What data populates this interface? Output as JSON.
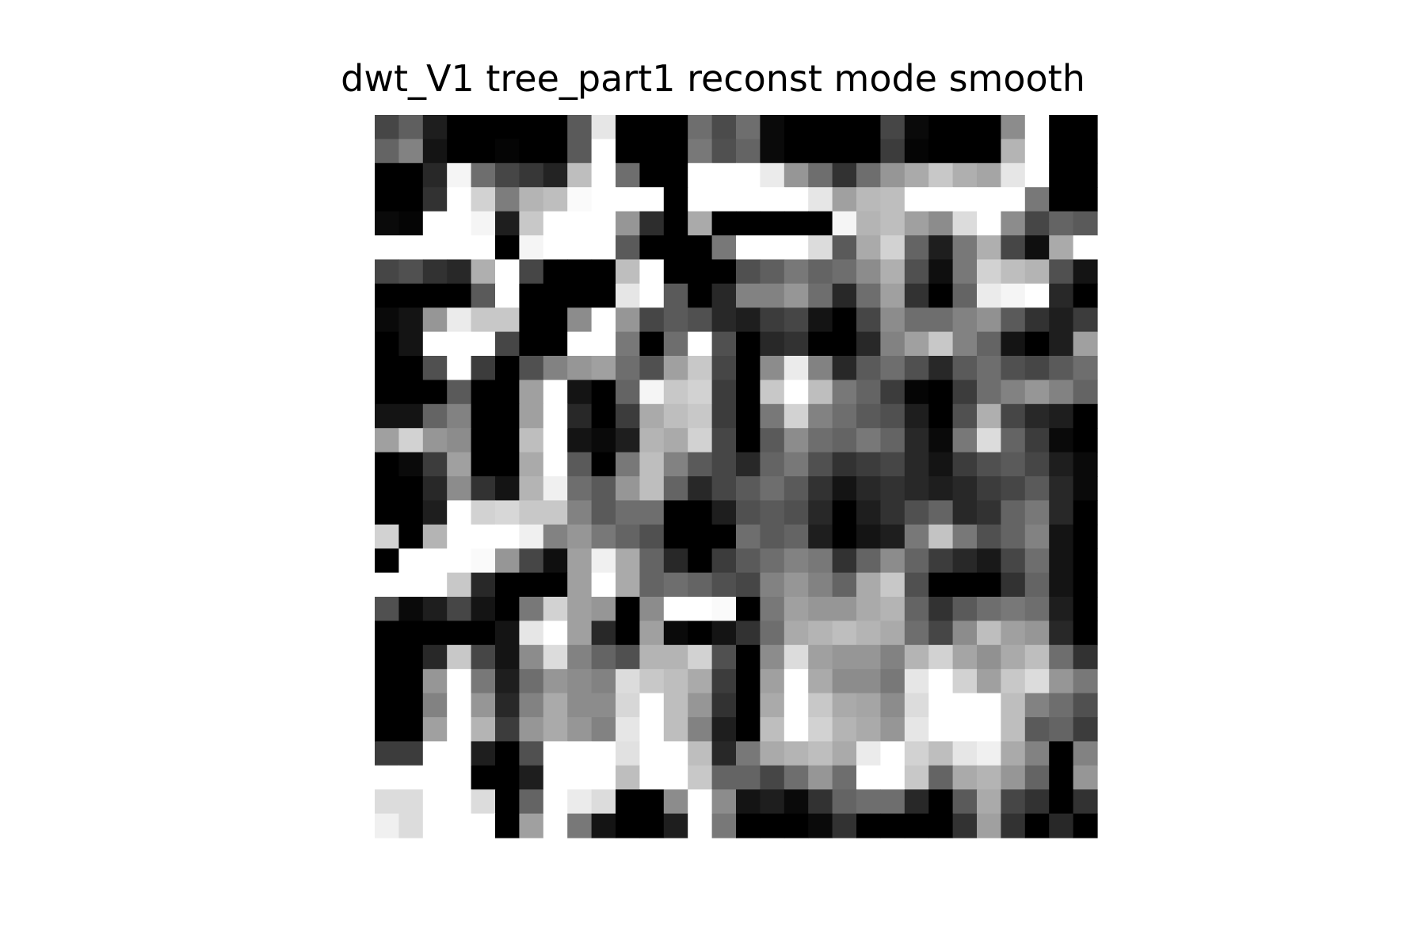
{
  "chart_data": {
    "type": "heatmap",
    "title": "dwt_V1 tree_part1 reconst mode smooth",
    "colormap": "gray",
    "vmin": 0,
    "vmax": 255,
    "rows": 30,
    "cols": 30,
    "axes_visible": false,
    "values": [
      [
        70,
        95,
        30,
        0,
        0,
        0,
        0,
        0,
        90,
        230,
        0,
        0,
        0,
        110,
        75,
        110,
        10,
        0,
        0,
        0,
        0,
        70,
        10,
        0,
        0,
        0,
        140,
        255,
        0,
        0
      ],
      [
        100,
        130,
        20,
        0,
        0,
        5,
        0,
        0,
        90,
        255,
        0,
        0,
        0,
        120,
        80,
        100,
        10,
        0,
        0,
        0,
        0,
        60,
        5,
        0,
        0,
        0,
        180,
        255,
        0,
        0
      ],
      [
        0,
        0,
        40,
        245,
        110,
        70,
        55,
        35,
        190,
        255,
        110,
        0,
        0,
        255,
        255,
        255,
        235,
        150,
        110,
        50,
        110,
        150,
        170,
        200,
        175,
        165,
        230,
        255,
        0,
        0
      ],
      [
        0,
        0,
        50,
        255,
        210,
        125,
        180,
        190,
        250,
        255,
        255,
        255,
        0,
        255,
        255,
        255,
        255,
        255,
        230,
        160,
        185,
        190,
        255,
        255,
        255,
        255,
        255,
        120,
        0,
        0
      ],
      [
        10,
        5,
        255,
        255,
        245,
        30,
        200,
        255,
        255,
        255,
        150,
        45,
        0,
        170,
        0,
        0,
        0,
        0,
        0,
        245,
        180,
        190,
        160,
        140,
        220,
        255,
        140,
        70,
        100,
        90
      ],
      [
        255,
        255,
        255,
        255,
        255,
        0,
        245,
        255,
        255,
        255,
        90,
        0,
        0,
        0,
        120,
        255,
        255,
        255,
        220,
        90,
        170,
        210,
        100,
        30,
        120,
        175,
        70,
        15,
        170,
        255
      ],
      [
        70,
        80,
        50,
        40,
        175,
        255,
        70,
        0,
        0,
        0,
        190,
        255,
        0,
        0,
        0,
        80,
        95,
        120,
        100,
        110,
        140,
        175,
        80,
        15,
        120,
        210,
        190,
        180,
        80,
        20
      ],
      [
        0,
        0,
        0,
        0,
        90,
        255,
        0,
        0,
        0,
        0,
        230,
        255,
        90,
        0,
        40,
        130,
        130,
        150,
        110,
        40,
        110,
        160,
        50,
        0,
        100,
        235,
        245,
        255,
        40,
        0
      ],
      [
        10,
        20,
        150,
        235,
        200,
        200,
        0,
        0,
        140,
        255,
        150,
        70,
        90,
        80,
        40,
        30,
        60,
        70,
        20,
        0,
        70,
        140,
        110,
        110,
        130,
        145,
        90,
        50,
        30,
        60
      ],
      [
        0,
        20,
        255,
        255,
        255,
        70,
        0,
        0,
        255,
        255,
        120,
        0,
        110,
        255,
        80,
        0,
        40,
        50,
        0,
        0,
        40,
        130,
        160,
        200,
        130,
        100,
        20,
        0,
        30,
        160
      ],
      [
        0,
        0,
        80,
        255,
        60,
        0,
        80,
        130,
        150,
        160,
        110,
        80,
        160,
        200,
        70,
        0,
        140,
        235,
        130,
        40,
        90,
        110,
        80,
        40,
        90,
        110,
        80,
        70,
        90,
        110
      ],
      [
        0,
        0,
        0,
        90,
        0,
        0,
        160,
        255,
        20,
        0,
        100,
        245,
        200,
        210,
        60,
        0,
        200,
        255,
        190,
        120,
        100,
        60,
        5,
        0,
        60,
        110,
        130,
        150,
        130,
        100
      ],
      [
        20,
        20,
        100,
        130,
        0,
        0,
        160,
        255,
        40,
        0,
        60,
        170,
        190,
        200,
        60,
        0,
        120,
        210,
        130,
        110,
        90,
        80,
        30,
        0,
        80,
        175,
        70,
        40,
        30,
        0
      ],
      [
        160,
        210,
        150,
        140,
        0,
        0,
        190,
        255,
        20,
        10,
        30,
        180,
        170,
        210,
        70,
        0,
        90,
        140,
        110,
        100,
        120,
        100,
        40,
        10,
        120,
        220,
        100,
        60,
        10,
        0
      ],
      [
        0,
        10,
        60,
        160,
        0,
        0,
        170,
        255,
        90,
        0,
        120,
        190,
        130,
        90,
        70,
        40,
        100,
        120,
        80,
        50,
        60,
        70,
        40,
        20,
        60,
        80,
        90,
        70,
        30,
        10
      ],
      [
        0,
        0,
        40,
        140,
        50,
        20,
        180,
        240,
        110,
        90,
        150,
        190,
        100,
        40,
        70,
        90,
        110,
        90,
        50,
        20,
        40,
        50,
        40,
        30,
        40,
        60,
        70,
        90,
        40,
        10
      ],
      [
        0,
        0,
        30,
        255,
        210,
        215,
        200,
        200,
        130,
        90,
        110,
        110,
        0,
        0,
        30,
        80,
        90,
        80,
        40,
        0,
        30,
        50,
        80,
        100,
        40,
        50,
        100,
        120,
        40,
        0
      ],
      [
        210,
        0,
        180,
        255,
        255,
        255,
        240,
        130,
        150,
        120,
        100,
        80,
        0,
        0,
        0,
        110,
        90,
        100,
        30,
        0,
        20,
        30,
        120,
        195,
        120,
        80,
        100,
        130,
        20,
        0
      ],
      [
        0,
        255,
        255,
        255,
        250,
        150,
        70,
        15,
        160,
        240,
        170,
        100,
        40,
        0,
        60,
        90,
        110,
        130,
        120,
        50,
        100,
        140,
        100,
        60,
        40,
        25,
        70,
        110,
        20,
        0
      ],
      [
        255,
        255,
        255,
        200,
        40,
        0,
        0,
        0,
        160,
        255,
        170,
        100,
        110,
        100,
        80,
        70,
        130,
        150,
        130,
        100,
        170,
        200,
        80,
        0,
        0,
        0,
        50,
        100,
        20,
        0
      ],
      [
        80,
        10,
        30,
        70,
        20,
        0,
        120,
        210,
        160,
        150,
        0,
        140,
        255,
        255,
        250,
        0,
        120,
        160,
        150,
        150,
        170,
        180,
        100,
        50,
        90,
        110,
        120,
        110,
        30,
        0
      ],
      [
        0,
        0,
        0,
        0,
        0,
        20,
        230,
        255,
        160,
        40,
        0,
        160,
        10,
        0,
        20,
        50,
        110,
        170,
        180,
        190,
        180,
        170,
        110,
        70,
        140,
        190,
        160,
        150,
        40,
        0
      ],
      [
        0,
        0,
        40,
        200,
        70,
        20,
        140,
        220,
        130,
        100,
        80,
        180,
        180,
        210,
        80,
        0,
        140,
        220,
        160,
        150,
        150,
        130,
        180,
        210,
        165,
        145,
        170,
        190,
        110,
        50
      ],
      [
        0,
        0,
        150,
        255,
        120,
        30,
        110,
        150,
        140,
        130,
        220,
        200,
        190,
        170,
        60,
        0,
        160,
        255,
        170,
        140,
        140,
        120,
        230,
        255,
        210,
        160,
        200,
        220,
        150,
        120
      ],
      [
        0,
        0,
        130,
        255,
        150,
        40,
        130,
        170,
        140,
        140,
        215,
        255,
        190,
        150,
        50,
        0,
        170,
        255,
        200,
        170,
        165,
        140,
        220,
        255,
        255,
        255,
        190,
        130,
        110,
        80
      ],
      [
        0,
        0,
        160,
        255,
        180,
        60,
        150,
        170,
        150,
        130,
        230,
        255,
        190,
        130,
        30,
        0,
        190,
        255,
        210,
        180,
        170,
        150,
        230,
        255,
        255,
        255,
        190,
        90,
        100,
        60
      ],
      [
        60,
        60,
        255,
        255,
        30,
        0,
        80,
        255,
        255,
        255,
        225,
        255,
        255,
        190,
        40,
        120,
        170,
        180,
        190,
        170,
        235,
        255,
        210,
        190,
        230,
        240,
        170,
        130,
        0,
        130
      ],
      [
        255,
        255,
        255,
        255,
        0,
        0,
        30,
        255,
        255,
        255,
        190,
        255,
        255,
        200,
        100,
        100,
        70,
        110,
        150,
        110,
        255,
        255,
        200,
        100,
        170,
        180,
        150,
        100,
        0,
        150
      ],
      [
        220,
        220,
        255,
        255,
        220,
        0,
        100,
        255,
        235,
        220,
        0,
        0,
        140,
        255,
        140,
        20,
        30,
        10,
        50,
        100,
        110,
        110,
        40,
        0,
        90,
        170,
        70,
        50,
        0,
        50
      ],
      [
        240,
        220,
        255,
        255,
        255,
        0,
        160,
        255,
        120,
        20,
        0,
        0,
        30,
        255,
        120,
        0,
        0,
        0,
        10,
        50,
        0,
        0,
        0,
        0,
        50,
        160,
        50,
        0,
        40,
        0
      ]
    ]
  }
}
